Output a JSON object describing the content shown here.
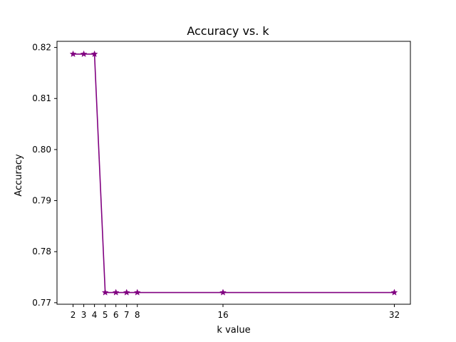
{
  "chart_data": {
    "type": "line",
    "title": "Accuracy vs. k",
    "xlabel": "k value",
    "ylabel": "Accuracy",
    "x": [
      2,
      3,
      4,
      5,
      6,
      7,
      8,
      16,
      32
    ],
    "xticks": [
      2,
      3,
      4,
      5,
      6,
      7,
      8,
      16,
      32
    ],
    "xtick_labels": [
      "2",
      "3",
      "4",
      "5",
      "6",
      "7",
      "8",
      "16",
      "32"
    ],
    "xlim": [
      0.5,
      33.5
    ],
    "yticks": [
      0.77,
      0.78,
      0.79,
      0.8,
      0.81,
      0.82
    ],
    "ytick_labels": [
      "0.77",
      "0.78",
      "0.79",
      "0.80",
      "0.81",
      "0.82"
    ],
    "ylim": [
      0.7697,
      0.8212
    ],
    "grid": false,
    "series": [
      {
        "values": [
          0.8187,
          0.8187,
          0.8187,
          0.772,
          0.772,
          0.772,
          0.772,
          0.772,
          0.772
        ],
        "color": "#800080",
        "marker": "star"
      }
    ]
  }
}
